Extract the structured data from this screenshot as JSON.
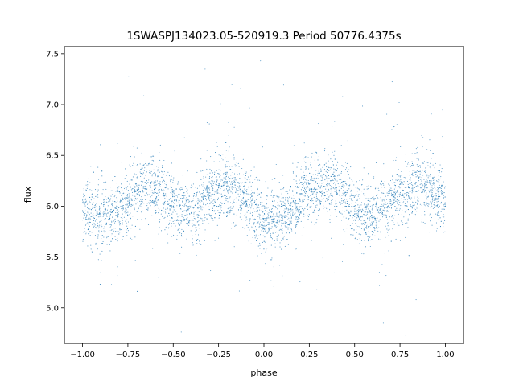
{
  "chart_data": {
    "type": "scatter",
    "title": "1SWASPJ134023.05-520919.3 Period 50776.4375s",
    "xlabel": "phase",
    "ylabel": "flux",
    "xlim": [
      -1.1,
      1.1
    ],
    "ylim": [
      4.65,
      7.57
    ],
    "xticks": [
      -1.0,
      -0.75,
      -0.5,
      -0.25,
      0.0,
      0.25,
      0.5,
      0.75,
      1.0
    ],
    "xtick_labels": [
      "−1.00",
      "−0.75",
      "−0.50",
      "−0.25",
      "0.00",
      "0.25",
      "0.50",
      "0.75",
      "1.00"
    ],
    "yticks": [
      5.0,
      5.5,
      6.0,
      6.5,
      7.0,
      7.5
    ],
    "ytick_labels": [
      "5.0",
      "5.5",
      "6.0",
      "6.5",
      "7.0",
      "7.5"
    ],
    "grid": false,
    "legend": false,
    "point_color": "#1f77b4",
    "series": [
      {
        "x": [
          -1.0,
          -0.95,
          -0.9,
          -0.85,
          -0.8,
          -0.75,
          -0.7,
          -0.65,
          -0.6,
          -0.55,
          -0.5,
          -0.45,
          -0.4,
          -0.35,
          -0.3,
          -0.25,
          -0.2,
          -0.15,
          -0.1,
          -0.05,
          0.0,
          0.05,
          0.1,
          0.15,
          0.2,
          0.25,
          0.3,
          0.35,
          0.4,
          0.45,
          0.5,
          0.55,
          0.6,
          0.65,
          0.7,
          0.75,
          0.8,
          0.85,
          0.9,
          0.95,
          1.0
        ],
        "y": [
          5.95,
          5.9,
          5.85,
          5.88,
          5.95,
          6.05,
          6.15,
          6.2,
          6.18,
          6.1,
          6.0,
          5.95,
          5.93,
          6.0,
          6.1,
          6.18,
          6.2,
          6.15,
          6.05,
          5.95,
          5.88,
          5.85,
          5.88,
          5.95,
          6.05,
          6.15,
          6.2,
          6.22,
          6.18,
          6.1,
          6.0,
          5.92,
          5.9,
          5.95,
          6.05,
          6.12,
          6.18,
          6.2,
          6.18,
          6.1,
          6.0
        ]
      }
    ]
  }
}
